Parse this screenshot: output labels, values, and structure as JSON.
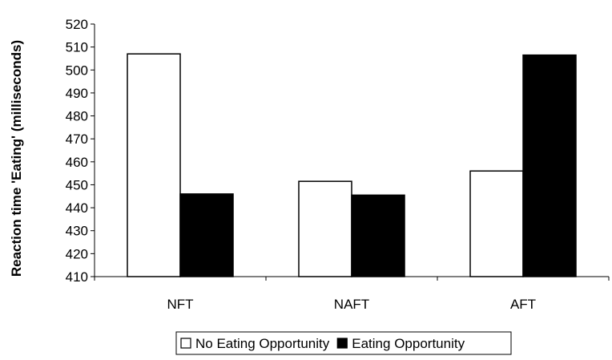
{
  "chart_data": {
    "type": "bar",
    "title": "",
    "xlabel": "",
    "ylabel": "Reaction time 'Eating' (milliseconds)",
    "categories": [
      "NFT",
      "NAFT",
      "AFT"
    ],
    "series": [
      {
        "name": "No Eating Opportunity",
        "values": [
          507,
          451.5,
          456
        ],
        "color": "#ffffff",
        "stroke": "#000000"
      },
      {
        "name": "Eating Opportunity",
        "values": [
          446,
          445.5,
          506.5
        ],
        "color": "#000000",
        "stroke": "#000000"
      }
    ],
    "ylim": [
      410,
      520
    ],
    "yticks": [
      410,
      420,
      430,
      440,
      450,
      460,
      470,
      480,
      490,
      500,
      510,
      520
    ],
    "grid": false,
    "legend_position": "bottom"
  }
}
